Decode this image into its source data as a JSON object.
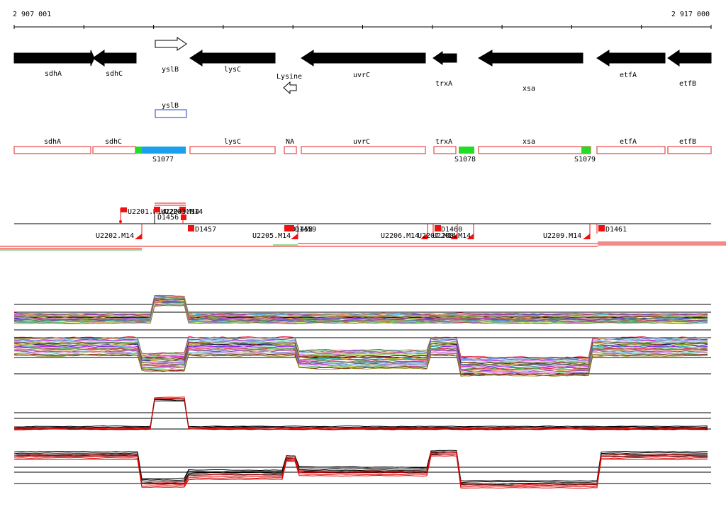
{
  "coords": {
    "start": "2 907 001",
    "end": "2 917 000"
  },
  "genes": [
    {
      "label": "sdhA",
      "dir": "r",
      "fill": "#000000"
    },
    {
      "label": "sdhC",
      "dir": "l",
      "fill": "#000000"
    },
    {
      "label": "yslB",
      "dir": "r",
      "fill": "#ffffff"
    },
    {
      "label": "lysC",
      "dir": "l",
      "fill": "#000000"
    },
    {
      "label": "Lysine",
      "dir": "l",
      "fill": "#ffffff"
    },
    {
      "label": "uvrC",
      "dir": "l",
      "fill": "#000000"
    },
    {
      "label": "trxA",
      "dir": "l",
      "fill": "#000000"
    },
    {
      "label": "xsa",
      "dir": "l",
      "fill": "#000000"
    },
    {
      "label": "etfA",
      "dir": "l",
      "fill": "#000000"
    },
    {
      "label": "etfB",
      "dir": "l",
      "fill": "#000000"
    }
  ],
  "secondary_box": {
    "label": "yslB",
    "color": "#1f3fbf"
  },
  "segments": [
    {
      "label": "sdhA"
    },
    {
      "label": "sdhC"
    },
    {
      "label": "lysC"
    },
    {
      "label": "NA"
    },
    {
      "label": "uvrC"
    },
    {
      "label": "trxA"
    },
    {
      "label": "xsa"
    },
    {
      "label": "etfA"
    },
    {
      "label": "etfB"
    }
  ],
  "segment_color": "#e02020",
  "s_regions": [
    {
      "label": "S1077"
    },
    {
      "label": "S1078"
    },
    {
      "label": "S1079"
    }
  ],
  "s_colors": {
    "green": "#22dd22",
    "blue": "#1aa0ee"
  },
  "markers_above": [
    {
      "label": "U2201.M14"
    },
    {
      "label": "U2204.M14"
    },
    {
      "label": "U2203.M14"
    },
    {
      "label": "D1456"
    }
  ],
  "markers_below": [
    {
      "label": "U2202.M14"
    },
    {
      "label": "D1457"
    },
    {
      "label": "U2205.M14"
    },
    {
      "label": "D1458"
    },
    {
      "label": "D1459"
    },
    {
      "label": "U2206.M14"
    },
    {
      "label": "U2207.M14"
    },
    {
      "label": "U2208.M14"
    },
    {
      "label": "D1460"
    },
    {
      "label": "U2209.M14"
    },
    {
      "label": "D1461"
    }
  ],
  "marker_color": "#ee1111"
}
